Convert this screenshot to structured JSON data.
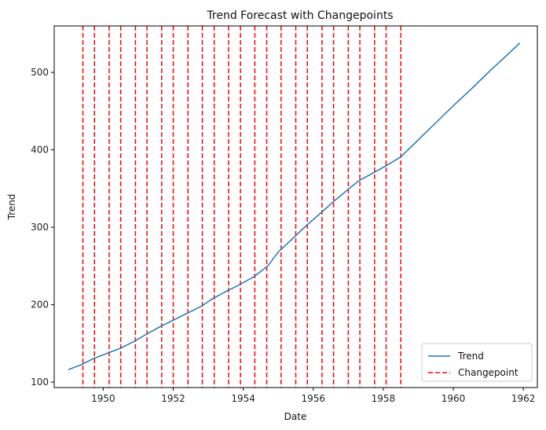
{
  "chart_data": {
    "type": "line",
    "title": "Trend Forecast with Changepoints",
    "xlabel": "Date",
    "ylabel": "Trend",
    "xlim": [
      1948.6,
      1962.4
    ],
    "ylim": [
      93,
      560
    ],
    "x_ticks": [
      1950,
      1952,
      1954,
      1956,
      1958,
      1960,
      1962
    ],
    "y_ticks": [
      100,
      200,
      300,
      400,
      500
    ],
    "grid": false,
    "legend_position": "lower right",
    "series": [
      {
        "name": "Trend",
        "color": "#1f77b4",
        "style": "solid",
        "x": [
          1949.0,
          1949.4,
          1949.7,
          1950.1,
          1950.5,
          1950.9,
          1951.2,
          1951.6,
          1952.0,
          1952.4,
          1952.8,
          1953.1,
          1953.5,
          1953.9,
          1954.3,
          1954.7,
          1955.0,
          1955.4,
          1955.8,
          1956.2,
          1956.6,
          1957.0,
          1957.3,
          1957.7,
          1958.1,
          1958.5,
          1959.0,
          1959.5,
          1960.0,
          1960.5,
          1961.0,
          1961.5,
          1961.9
        ],
        "y": [
          116,
          123,
          130,
          137,
          144,
          153,
          161,
          171,
          180,
          189,
          198,
          207,
          217,
          226,
          236,
          250,
          268,
          285,
          302,
          318,
          334,
          349,
          360,
          370,
          380,
          391,
          413,
          435,
          457,
          478,
          500,
          521,
          538
        ]
      }
    ],
    "changepoints": {
      "name": "Changepoint",
      "color": "#ff0000",
      "style": "dashed",
      "x": [
        1949.42,
        1949.75,
        1950.17,
        1950.5,
        1950.92,
        1951.25,
        1951.67,
        1952.0,
        1952.42,
        1952.83,
        1953.17,
        1953.58,
        1953.92,
        1954.33,
        1954.67,
        1955.08,
        1955.5,
        1955.83,
        1956.25,
        1956.58,
        1957.0,
        1957.33,
        1957.75,
        1958.08,
        1958.5
      ]
    }
  }
}
